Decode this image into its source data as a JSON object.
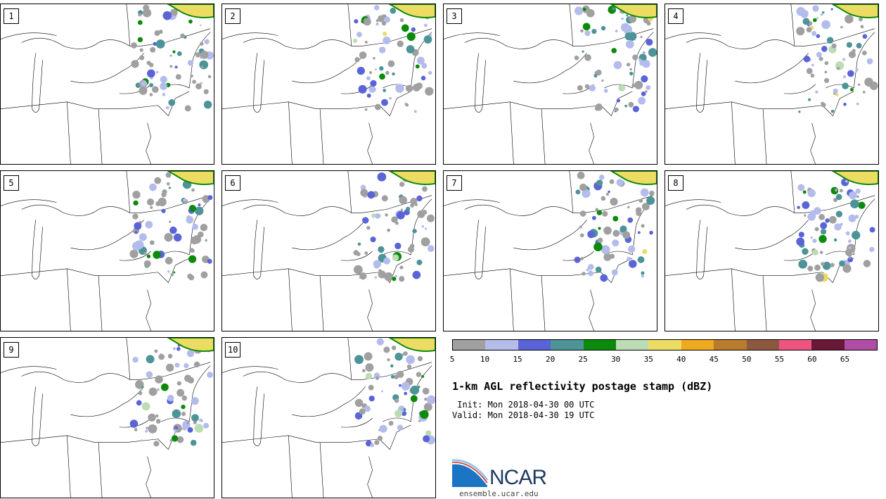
{
  "panels": [
    {
      "label": "1"
    },
    {
      "label": "2"
    },
    {
      "label": "3"
    },
    {
      "label": "4"
    },
    {
      "label": "5"
    },
    {
      "label": "6"
    },
    {
      "label": "7"
    },
    {
      "label": "8"
    },
    {
      "label": "9"
    },
    {
      "label": "10"
    }
  ],
  "colorbar": {
    "colors": [
      "#a0a0a0",
      "#b4bcec",
      "#5a64d8",
      "#4c9498",
      "#0b8a0b",
      "#bcdcb4",
      "#ecdc64",
      "#eeaa1e",
      "#b87c2c",
      "#8e5840",
      "#ee5480",
      "#6a1838",
      "#b04ca4"
    ],
    "ticks": [
      "5",
      "10",
      "15",
      "20",
      "25",
      "30",
      "35",
      "40",
      "45",
      "50",
      "55",
      "60",
      "65"
    ]
  },
  "title": "1-km AGL reflectivity postage stamp (dBZ)",
  "init_line": " Init: Mon 2018-04-30 00 UTC",
  "valid_line": "Valid: Mon 2018-04-30 19 UTC",
  "logo": {
    "text": "NCAR",
    "url": "ensemble.ucar.edu",
    "icon": "ncar-swoosh-icon"
  }
}
